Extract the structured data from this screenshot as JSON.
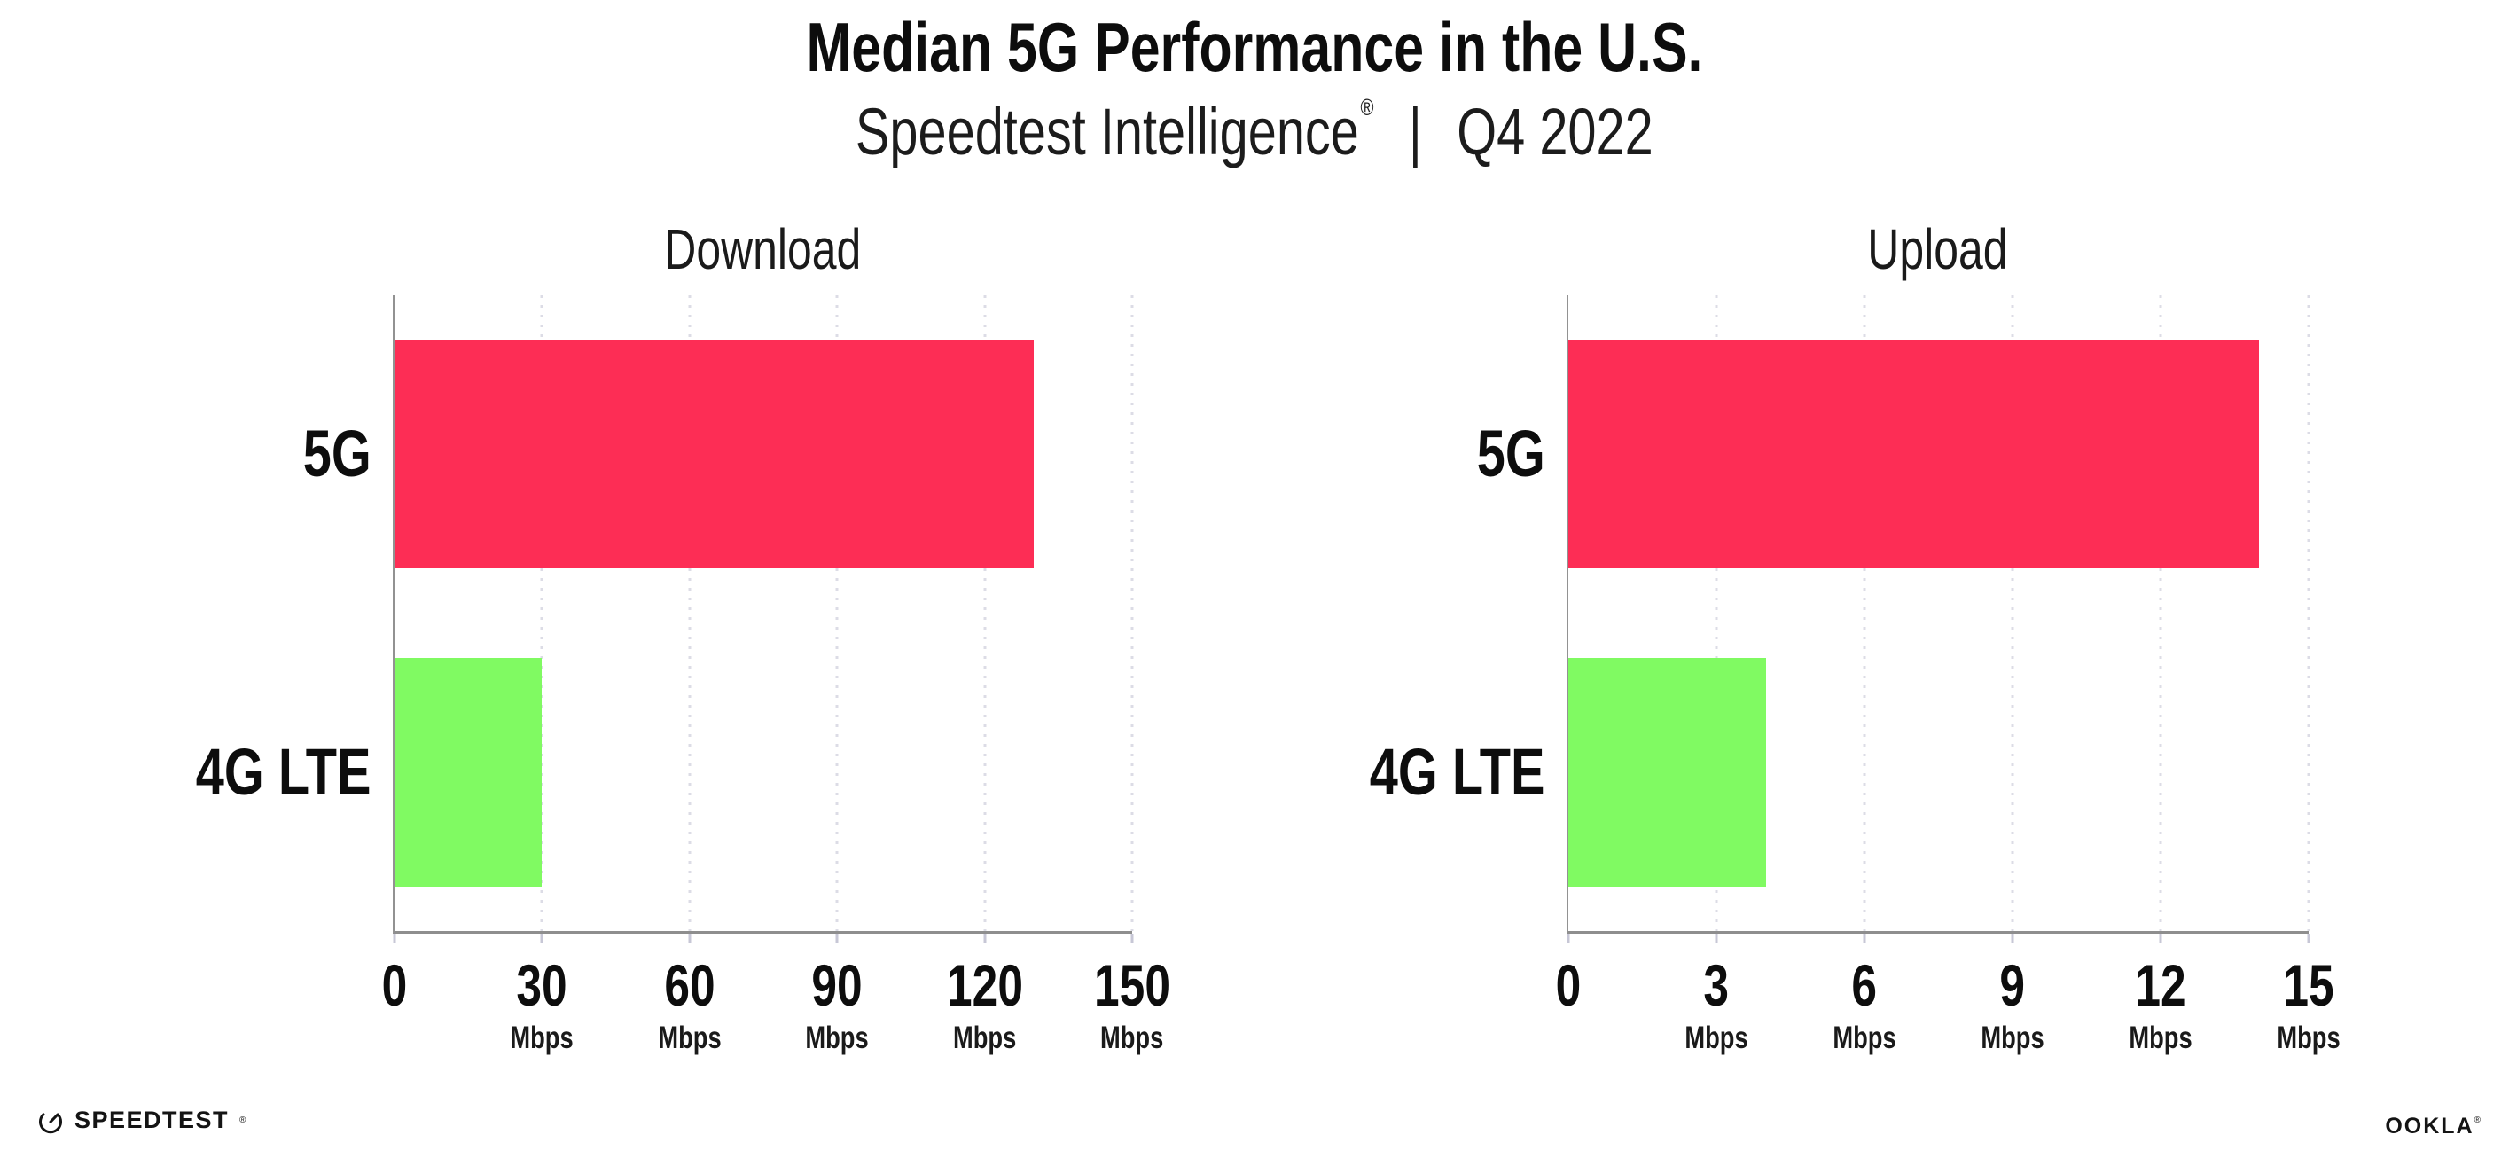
{
  "header": {
    "title": "Median 5G Performance in the U.S.",
    "subtitle_brand": "Speedtest Intelligence",
    "subtitle_registered": "®",
    "subtitle_separator": "|",
    "subtitle_period": "Q4 2022"
  },
  "chart_data": [
    {
      "type": "bar",
      "orientation": "horizontal",
      "title": "Download",
      "categories": [
        "5G",
        "4G LTE"
      ],
      "values": [
        130,
        30
      ],
      "unit": "Mbps",
      "xlim": [
        0,
        150
      ],
      "xticks": [
        0,
        30,
        60,
        90,
        120,
        150
      ],
      "bar_colors": [
        "#fd2d55",
        "#80fa62"
      ],
      "grid": "dotted-vertical",
      "legend": "none"
    },
    {
      "type": "bar",
      "orientation": "horizontal",
      "title": "Upload",
      "categories": [
        "5G",
        "4G LTE"
      ],
      "values": [
        14,
        4
      ],
      "unit": "Mbps",
      "xlim": [
        0,
        15
      ],
      "xticks": [
        0,
        3,
        6,
        9,
        12,
        15
      ],
      "bar_colors": [
        "#fd2d55",
        "#80fa62"
      ],
      "grid": "dotted-vertical",
      "legend": "none"
    }
  ],
  "footer": {
    "speedtest_label": "SPEEDTEST",
    "speedtest_registered": "®",
    "ookla_label": "OOKLA",
    "ookla_registered": "®"
  },
  "colors": {
    "bar_5g": "#fd2d55",
    "bar_4g_lte": "#80fa62",
    "axis": "#8e8e8e",
    "gridline": "#dcdce6",
    "text": "#0d0d0d"
  }
}
